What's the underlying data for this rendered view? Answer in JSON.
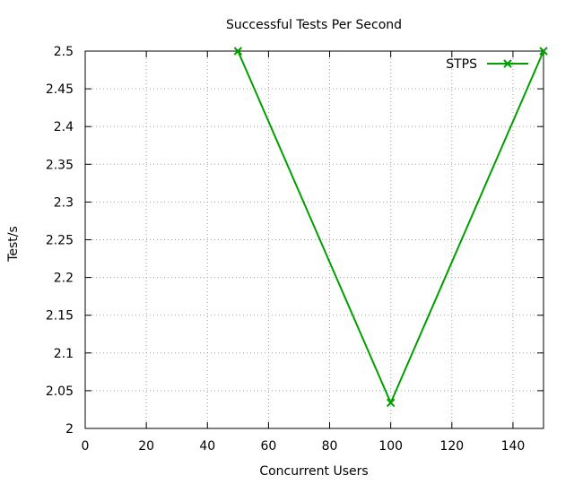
{
  "chart_data": {
    "type": "line",
    "title": "Successful Tests Per Second",
    "xlabel": "Concurrent Users",
    "ylabel": "Test/s",
    "xlim": [
      0,
      150
    ],
    "ylim": [
      2,
      2.5
    ],
    "x_ticks": [
      "0",
      "20",
      "40",
      "60",
      "80",
      "100",
      "120",
      "140"
    ],
    "y_ticks": [
      "2",
      "2.05",
      "2.1",
      "2.15",
      "2.2",
      "2.25",
      "2.3",
      "2.35",
      "2.4",
      "2.45",
      "2.5"
    ],
    "grid": true,
    "legend_position": "top-right",
    "series": [
      {
        "name": "STPS",
        "color": "#00a000",
        "marker": "x",
        "x": [
          50,
          100,
          150
        ],
        "y": [
          2.5,
          2.034,
          2.5
        ]
      }
    ]
  }
}
